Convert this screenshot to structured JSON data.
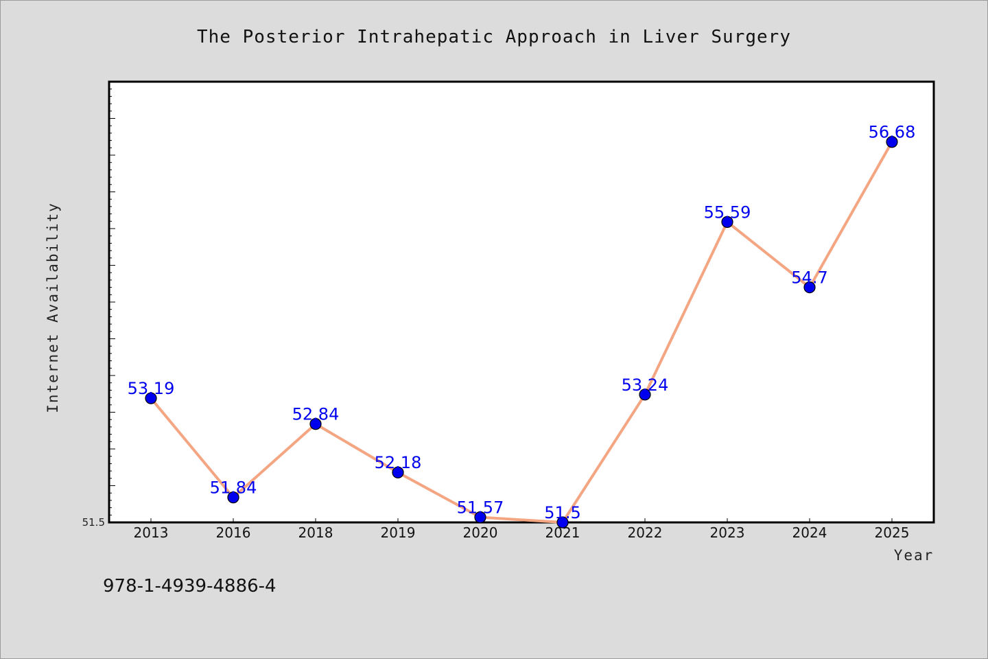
{
  "chart_data": {
    "type": "line",
    "title": "The Posterior Intrahepatic Approach in Liver Surgery",
    "xlabel": "Year",
    "ylabel": "Internet Availability",
    "categories": [
      "2013",
      "2016",
      "2018",
      "2019",
      "2020",
      "2021",
      "2022",
      "2023",
      "2024",
      "2025"
    ],
    "series": [
      {
        "values": [
          53.19,
          51.84,
          52.84,
          52.18,
          51.57,
          51.5,
          53.24,
          55.59,
          54.7,
          56.68
        ],
        "data_labels": [
          "53.19",
          "51.84",
          "52.84",
          "52.18",
          "51.57",
          "51.5",
          "53.24",
          "55.59",
          "54.7",
          "56.68"
        ]
      }
    ],
    "ylim": [
      51.5,
      57.5
    ],
    "yticks_labeled": [
      "51.5"
    ],
    "grid": false,
    "legend": "none",
    "colors": {
      "line": "#f4a582",
      "marker": "#0000ee",
      "data_label": "#0000ee",
      "plot_bg": "#ffffff",
      "page_bg": "#dcdcdc"
    }
  },
  "footnote": "978-1-4939-4886-4"
}
